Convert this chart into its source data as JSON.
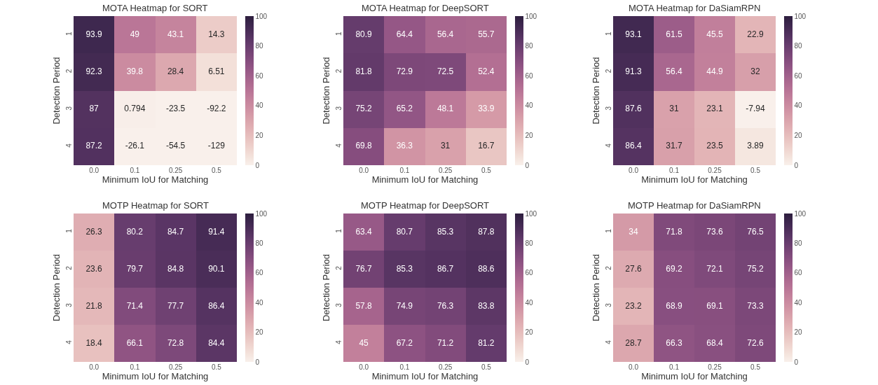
{
  "chart_data": [
    {
      "type": "heatmap",
      "title": "MOTA Heatmap for SORT",
      "xlabel": "Minimum IoU for Matching",
      "ylabel": "Detection Period",
      "categories": [
        "0.0",
        "0.1",
        "0.25",
        "0.5"
      ],
      "y_categories": [
        "1",
        "2",
        "3",
        "4"
      ],
      "cells": [
        [
          93.9,
          49,
          43.1,
          14.3
        ],
        [
          92.3,
          39.8,
          28.4,
          6.51
        ],
        [
          87,
          0.794,
          -23.5,
          -92.2
        ],
        [
          87.2,
          -26.1,
          -54.5,
          -129
        ]
      ],
      "clim": [
        0,
        100
      ],
      "cticks": [
        0,
        20,
        40,
        60,
        80,
        100
      ],
      "data_labels": true
    },
    {
      "type": "heatmap",
      "title": "MOTA Heatmap for DeepSORT",
      "xlabel": "Minimum IoU for Matching",
      "ylabel": "Detection Period",
      "categories": [
        "0.0",
        "0.1",
        "0.25",
        "0.5"
      ],
      "y_categories": [
        "1",
        "2",
        "3",
        "4"
      ],
      "cells": [
        [
          80.9,
          64.4,
          56.4,
          55.7
        ],
        [
          81.8,
          72.9,
          72.5,
          52.4
        ],
        [
          75.2,
          65.2,
          48.1,
          33.9
        ],
        [
          69.8,
          36.3,
          31,
          16.7
        ]
      ],
      "clim": [
        0,
        100
      ],
      "cticks": [
        0,
        20,
        40,
        60,
        80,
        100
      ],
      "data_labels": true
    },
    {
      "type": "heatmap",
      "title": "MOTA Heatmap for DaSiamRPN",
      "xlabel": "Minimum IoU for Matching",
      "ylabel": "Detection Period",
      "categories": [
        "0.0",
        "0.1",
        "0.25",
        "0.5"
      ],
      "y_categories": [
        "1",
        "2",
        "3",
        "4"
      ],
      "cells": [
        [
          93.1,
          61.5,
          45.5,
          22.9
        ],
        [
          91.3,
          56.4,
          44.9,
          32
        ],
        [
          87.6,
          31,
          23.1,
          -7.94
        ],
        [
          86.4,
          31.7,
          23.5,
          3.89
        ]
      ],
      "clim": [
        0,
        100
      ],
      "cticks": [
        0,
        20,
        40,
        60,
        80,
        100
      ],
      "data_labels": true
    },
    {
      "type": "heatmap",
      "title": "MOTP Heatmap for SORT",
      "xlabel": "Minimum IoU for Matching",
      "ylabel": "Detection Period",
      "categories": [
        "0.0",
        "0.1",
        "0.25",
        "0.5"
      ],
      "y_categories": [
        "1",
        "2",
        "3",
        "4"
      ],
      "cells": [
        [
          26.3,
          80.2,
          84.7,
          91.4
        ],
        [
          23.6,
          79.7,
          84.8,
          90.1
        ],
        [
          21.8,
          71.4,
          77.7,
          86.4
        ],
        [
          18.4,
          66.1,
          72.8,
          84.4
        ]
      ],
      "clim": [
        0,
        100
      ],
      "cticks": [
        0,
        20,
        40,
        60,
        80,
        100
      ],
      "data_labels": true
    },
    {
      "type": "heatmap",
      "title": "MOTP Heatmap for DeepSORT",
      "xlabel": "Minimum IoU for Matching",
      "ylabel": "Detection Period",
      "categories": [
        "0.0",
        "0.1",
        "0.25",
        "0.5"
      ],
      "y_categories": [
        "1",
        "2",
        "3",
        "4"
      ],
      "cells": [
        [
          63.4,
          80.7,
          85.3,
          87.8
        ],
        [
          76.7,
          85.3,
          86.7,
          88.6
        ],
        [
          57.8,
          74.9,
          76.3,
          83.8
        ],
        [
          45,
          67.2,
          71.2,
          81.2
        ]
      ],
      "clim": [
        0,
        100
      ],
      "cticks": [
        0,
        20,
        40,
        60,
        80,
        100
      ],
      "data_labels": true
    },
    {
      "type": "heatmap",
      "title": "MOTP Heatmap for DaSiamRPN",
      "xlabel": "Minimum IoU for Matching",
      "ylabel": "Detection Period",
      "categories": [
        "0.0",
        "0.1",
        "0.25",
        "0.5"
      ],
      "y_categories": [
        "1",
        "2",
        "3",
        "4"
      ],
      "cells": [
        [
          34,
          71.8,
          73.6,
          76.5
        ],
        [
          27.6,
          69.2,
          72.1,
          75.2
        ],
        [
          23.2,
          68.9,
          69.1,
          73.3
        ],
        [
          28.7,
          66.3,
          68.4,
          72.6
        ]
      ],
      "clim": [
        0,
        100
      ],
      "cticks": [
        0,
        20,
        40,
        60,
        80,
        100
      ],
      "data_labels": true
    }
  ]
}
